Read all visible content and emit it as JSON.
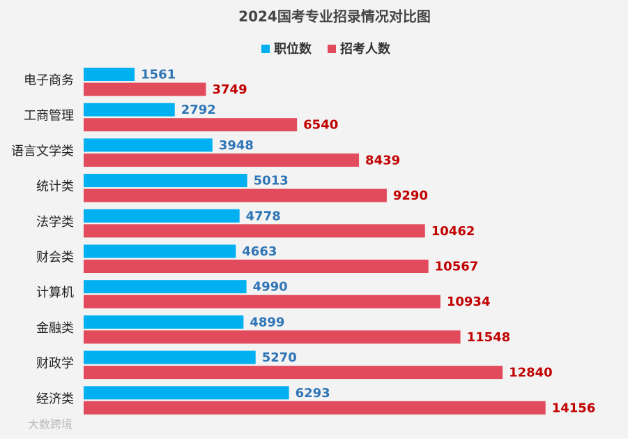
{
  "chart_data": {
    "type": "hbar",
    "title": "2024国考专业招录情况对比图",
    "categories": [
      "电子商务",
      "工商管理",
      "语言文学类",
      "统计类",
      "法学类",
      "财会类",
      "计算机",
      "金融类",
      "财政学",
      "经济类"
    ],
    "series": [
      {
        "name": "职位数",
        "color": "#00b0f0",
        "label_color": "#2e75b6",
        "values": [
          1561,
          2792,
          3948,
          5013,
          4778,
          4663,
          4990,
          4899,
          5270,
          6293
        ]
      },
      {
        "name": "招考人数",
        "color": "#e24b5c",
        "label_color": "#c00000",
        "values": [
          3749,
          6540,
          8439,
          9290,
          10462,
          10567,
          10934,
          11548,
          12840,
          14156
        ]
      }
    ],
    "xlim": [
      0,
      16000
    ],
    "watermark": "大数跨境"
  }
}
